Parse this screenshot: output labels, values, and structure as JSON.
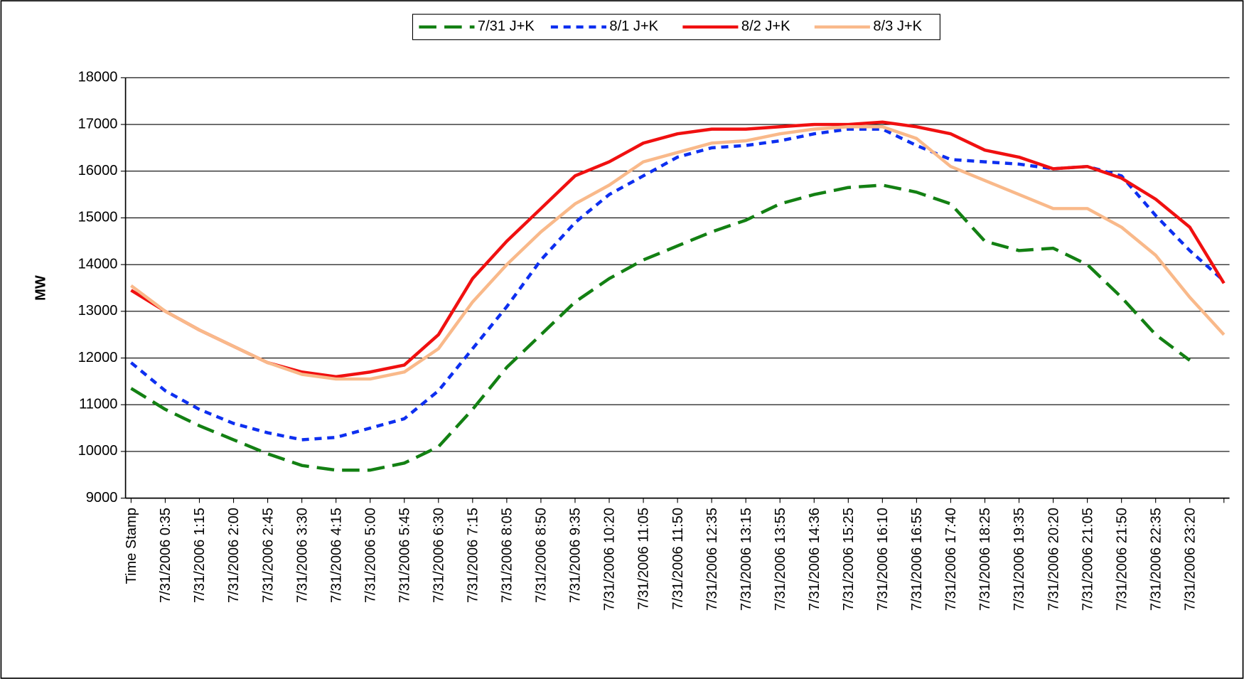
{
  "chart_data": {
    "type": "line",
    "ylabel": "MW",
    "categories": [
      "Time Stamp",
      "7/31/2006 0:35",
      "7/31/2006 1:15",
      "7/31/2006 2:00",
      "7/31/2006 2:45",
      "7/31/2006 3:30",
      "7/31/2006 4:15",
      "7/31/2006 5:00",
      "7/31/2006 5:45",
      "7/31/2006 6:30",
      "7/31/2006 7:15",
      "7/31/2006 8:05",
      "7/31/2006 8:50",
      "7/31/2006 9:35",
      "7/31/2006 10:20",
      "7/31/2006 11:05",
      "7/31/2006 11:50",
      "7/31/2006 12:35",
      "7/31/2006 13:15",
      "7/31/2006 13:55",
      "7/31/2006 14:36",
      "7/31/2006 15:25",
      "7/31/2006 16:10",
      "7/31/2006 16:55",
      "7/31/2006 17:40",
      "7/31/2006 18:25",
      "7/31/2006 19:35",
      "7/31/2006 20:20",
      "7/31/2006 21:05",
      "7/31/2006 21:50",
      "7/31/2006 22:35",
      "7/31/2006 23:20",
      null
    ],
    "series": [
      {
        "name": "7/31 J+K",
        "color": "#138013",
        "dash": "long",
        "values": [
          11350,
          10900,
          10550,
          10250,
          9950,
          9700,
          9600,
          9600,
          9750,
          10100,
          10900,
          11800,
          12500,
          13200,
          13700,
          14100,
          14400,
          14700,
          14950,
          15300,
          15500,
          15650,
          15700,
          15550,
          15300,
          14500,
          14300,
          14350,
          14000,
          13300,
          12500,
          11950,
          null
        ]
      },
      {
        "name": "8/1 J+K",
        "color": "#0d2ff0",
        "dash": "short",
        "values": [
          11900,
          11300,
          10900,
          10600,
          10400,
          10250,
          10300,
          10500,
          10700,
          11300,
          12200,
          13100,
          14100,
          14900,
          15500,
          15900,
          16300,
          16500,
          16550,
          16650,
          16800,
          16900,
          16900,
          16550,
          16250,
          16200,
          16150,
          16050,
          16100,
          15900,
          15050,
          14300,
          13650
        ]
      },
      {
        "name": "8/2 J+K",
        "color": "#f01010",
        "dash": "solid",
        "values": [
          13450,
          13000,
          12600,
          12250,
          11900,
          11700,
          11600,
          11700,
          11850,
          12500,
          13700,
          14500,
          15200,
          15900,
          16200,
          16600,
          16800,
          16900,
          16900,
          16950,
          17000,
          17000,
          17050,
          16950,
          16800,
          16450,
          16300,
          16050,
          16100,
          15850,
          15400,
          14800,
          13600
        ]
      },
      {
        "name": "8/3 J+K",
        "color": "#f9b98a",
        "dash": "solid",
        "values": [
          13550,
          13000,
          12600,
          12250,
          11900,
          11650,
          11550,
          11550,
          11700,
          12200,
          13200,
          14000,
          14700,
          15300,
          15700,
          16200,
          16400,
          16600,
          16650,
          16800,
          16900,
          16950,
          16950,
          16700,
          16100,
          15800,
          15500,
          15200,
          15200,
          14800,
          14200,
          13300,
          12500
        ]
      }
    ],
    "ylim": [
      9000,
      18000
    ],
    "yticks": [
      9000,
      10000,
      11000,
      12000,
      13000,
      14000,
      15000,
      16000,
      17000,
      18000
    ],
    "grid": true
  }
}
